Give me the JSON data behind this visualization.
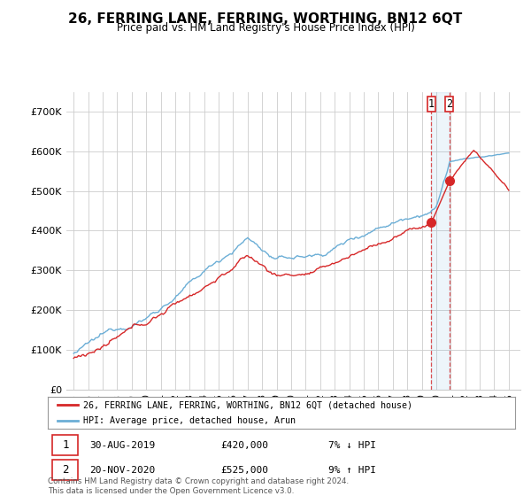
{
  "title": "26, FERRING LANE, FERRING, WORTHING, BN12 6QT",
  "subtitle": "Price paid vs. HM Land Registry's House Price Index (HPI)",
  "hpi_color": "#6baed6",
  "price_color": "#d62728",
  "background_color": "#ffffff",
  "grid_color": "#cccccc",
  "legend1_label": "26, FERRING LANE, FERRING, WORTHING, BN12 6QT (detached house)",
  "legend2_label": "HPI: Average price, detached house, Arun",
  "annotation1_num": "1",
  "annotation1_date": "30-AUG-2019",
  "annotation1_price": "£420,000",
  "annotation1_hpi": "7% ↓ HPI",
  "annotation2_num": "2",
  "annotation2_date": "20-NOV-2020",
  "annotation2_price": "£525,000",
  "annotation2_hpi": "9% ↑ HPI",
  "footer": "Contains HM Land Registry data © Crown copyright and database right 2024.\nThis data is licensed under the Open Government Licence v3.0.",
  "sale1_year": 2019.66,
  "sale1_value": 420000,
  "sale2_year": 2020.9,
  "sale2_value": 525000,
  "yticks": [
    0,
    100000,
    200000,
    300000,
    400000,
    500000,
    600000,
    700000
  ],
  "ytick_labels": [
    "£0",
    "£100K",
    "£200K",
    "£300K",
    "£400K",
    "£500K",
    "£600K",
    "£700K"
  ]
}
